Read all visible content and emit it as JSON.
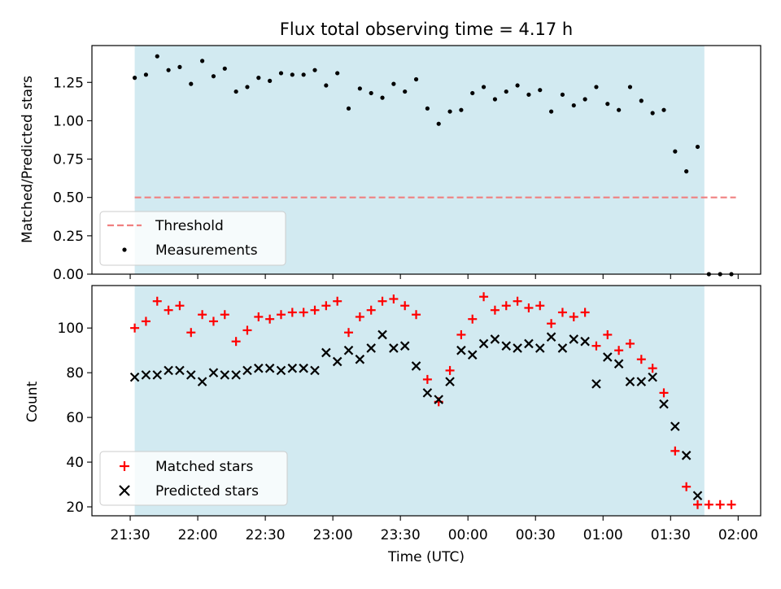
{
  "title": "Flux total observing time = 4.17 h",
  "colors": {
    "shade": "#add8e6",
    "threshold": "#f08080",
    "measurement": "#000000",
    "matched": "#ff0000",
    "predicted": "#000000"
  },
  "chart_data": [
    {
      "type": "scatter",
      "ylabel": "Matched/Predicted stars",
      "ylim": [
        0,
        1.49
      ],
      "yticks": [
        "0.00",
        "0.25",
        "0.50",
        "0.75",
        "1.00",
        "1.25"
      ],
      "shaded_span": [
        "21:32",
        "01:45"
      ],
      "legend_position": "lower-left",
      "threshold": {
        "name": "Threshold",
        "value": 0.5,
        "x_range": [
          "21:32",
          "01:59"
        ]
      },
      "series": [
        {
          "name": "Measurements",
          "x": [
            "21:32",
            "21:37",
            "21:42",
            "21:47",
            "21:52",
            "21:57",
            "22:02",
            "22:07",
            "22:12",
            "22:17",
            "22:22",
            "22:27",
            "22:32",
            "22:37",
            "22:42",
            "22:47",
            "22:52",
            "22:57",
            "23:02",
            "23:07",
            "23:12",
            "23:17",
            "23:22",
            "23:27",
            "23:32",
            "23:37",
            "23:42",
            "23:47",
            "23:52",
            "23:57",
            "00:02",
            "00:07",
            "00:12",
            "00:17",
            "00:22",
            "00:27",
            "00:32",
            "00:37",
            "00:42",
            "00:47",
            "00:52",
            "00:57",
            "01:02",
            "01:07",
            "01:12",
            "01:17",
            "01:22",
            "01:27",
            "01:32",
            "01:37",
            "01:42",
            "01:47",
            "01:52",
            "01:57"
          ],
          "values": [
            1.28,
            1.3,
            1.42,
            1.33,
            1.35,
            1.24,
            1.39,
            1.29,
            1.34,
            1.19,
            1.22,
            1.28,
            1.26,
            1.31,
            1.3,
            1.3,
            1.33,
            1.23,
            1.31,
            1.08,
            1.21,
            1.18,
            1.15,
            1.24,
            1.19,
            1.27,
            1.08,
            0.98,
            1.06,
            1.07,
            1.18,
            1.22,
            1.14,
            1.19,
            1.23,
            1.17,
            1.2,
            1.06,
            1.17,
            1.1,
            1.14,
            1.22,
            1.11,
            1.07,
            1.22,
            1.13,
            1.05,
            1.07,
            0.8,
            0.67,
            0.83,
            0.0,
            0.0,
            0.0
          ]
        }
      ]
    },
    {
      "type": "scatter",
      "xlabel": "Time (UTC)",
      "ylabel": "Count",
      "ylim": [
        16,
        119
      ],
      "yticks": [
        "20",
        "40",
        "60",
        "80",
        "100"
      ],
      "xticks": [
        "21:30",
        "22:00",
        "22:30",
        "23:00",
        "23:30",
        "00:00",
        "00:30",
        "01:00",
        "01:30",
        "02:00"
      ],
      "shaded_span": [
        "21:32",
        "01:45"
      ],
      "legend_position": "lower-left",
      "series": [
        {
          "name": "Matched stars",
          "x": [
            "21:32",
            "21:37",
            "21:42",
            "21:47",
            "21:52",
            "21:57",
            "22:02",
            "22:07",
            "22:12",
            "22:17",
            "22:22",
            "22:27",
            "22:32",
            "22:37",
            "22:42",
            "22:47",
            "22:52",
            "22:57",
            "23:02",
            "23:07",
            "23:12",
            "23:17",
            "23:22",
            "23:27",
            "23:32",
            "23:37",
            "23:42",
            "23:47",
            "23:52",
            "23:57",
            "00:02",
            "00:07",
            "00:12",
            "00:17",
            "00:22",
            "00:27",
            "00:32",
            "00:37",
            "00:42",
            "00:47",
            "00:52",
            "00:57",
            "01:02",
            "01:07",
            "01:12",
            "01:17",
            "01:22",
            "01:27",
            "01:32",
            "01:37",
            "01:42",
            "01:47",
            "01:52",
            "01:57"
          ],
          "values": [
            100,
            103,
            112,
            108,
            110,
            98,
            106,
            103,
            106,
            94,
            99,
            105,
            104,
            106,
            107,
            107,
            108,
            110,
            112,
            98,
            105,
            108,
            112,
            113,
            110,
            106,
            77,
            67,
            81,
            97,
            104,
            114,
            108,
            110,
            112,
            109,
            110,
            102,
            107,
            105,
            107,
            92,
            97,
            90,
            93,
            86,
            82,
            71,
            45,
            29,
            21,
            21,
            21,
            21
          ]
        },
        {
          "name": "Predicted stars",
          "x": [
            "21:32",
            "21:37",
            "21:42",
            "21:47",
            "21:52",
            "21:57",
            "22:02",
            "22:07",
            "22:12",
            "22:17",
            "22:22",
            "22:27",
            "22:32",
            "22:37",
            "22:42",
            "22:47",
            "22:52",
            "22:57",
            "23:02",
            "23:07",
            "23:12",
            "23:17",
            "23:22",
            "23:27",
            "23:32",
            "23:37",
            "23:42",
            "23:47",
            "23:52",
            "23:57",
            "00:02",
            "00:07",
            "00:12",
            "00:17",
            "00:22",
            "00:27",
            "00:32",
            "00:37",
            "00:42",
            "00:47",
            "00:52",
            "00:57",
            "01:02",
            "01:07",
            "01:12",
            "01:17",
            "01:22",
            "01:27",
            "01:32",
            "01:37",
            "01:42"
          ],
          "values": [
            78,
            79,
            79,
            81,
            81,
            79,
            76,
            80,
            79,
            79,
            81,
            82,
            82,
            81,
            82,
            82,
            81,
            89,
            85,
            90,
            86,
            91,
            97,
            91,
            92,
            83,
            71,
            68,
            76,
            90,
            88,
            93,
            95,
            92,
            91,
            93,
            91,
            96,
            91,
            95,
            94,
            75,
            87,
            84,
            76,
            76,
            78,
            66,
            56,
            43,
            25
          ]
        }
      ]
    }
  ]
}
